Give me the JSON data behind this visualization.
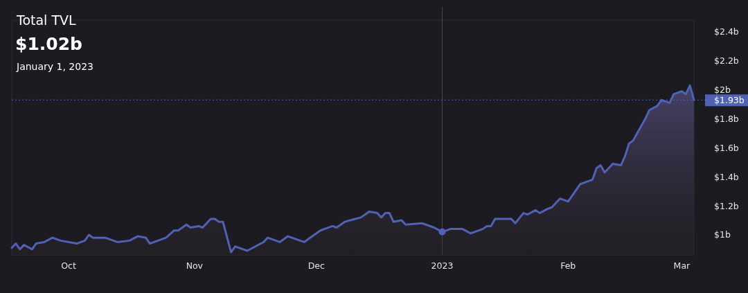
{
  "chart_data": {
    "type": "area",
    "title": "Total TVL",
    "subtitle": "$1.02b",
    "annotations": [
      "January 1, 2023"
    ],
    "xlim": [
      "2022-09-17",
      "2023-03-04"
    ],
    "xticks": [
      {
        "value": "2022-10-01",
        "label": "Oct"
      },
      {
        "value": "2022-11-01",
        "label": "Nov"
      },
      {
        "value": "2022-12-01",
        "label": "Dec"
      },
      {
        "value": "2023-01-01",
        "label": "2023"
      },
      {
        "value": "2023-02-01",
        "label": "Feb"
      },
      {
        "value": "2023-03-01",
        "label": "Mar"
      }
    ],
    "ylim": [
      0.86,
      2.48
    ],
    "yticks": [
      {
        "value": 1,
        "label": "$1b"
      },
      {
        "value": 1.2,
        "label": "$1.2b"
      },
      {
        "value": 1.4,
        "label": "$1.4b"
      },
      {
        "value": 1.6,
        "label": "$1.6b"
      },
      {
        "value": 1.8,
        "label": "$1.8b"
      },
      {
        "value": 2,
        "label": "$2b"
      },
      {
        "value": 2.2,
        "label": "$2.2b"
      },
      {
        "value": 2.4,
        "label": "$2.4b"
      }
    ],
    "ref_lines": [
      {
        "axis": "x",
        "value": "2023-01-01",
        "label": null,
        "color": "#4a4a52",
        "line_style": "solid"
      },
      {
        "axis": "y",
        "value": 1.93,
        "label": "$1.93b",
        "color": "#4f62b4",
        "line_style": "dotted"
      }
    ],
    "series": [
      {
        "color": "#4f62b4",
        "x": [
          "2022-09-17",
          "2022-09-18",
          "2022-09-19",
          "2022-09-20",
          "2022-09-22",
          "2022-09-23",
          "2022-09-25",
          "2022-09-27",
          "2022-09-29",
          "2022-10-03",
          "2022-10-05",
          "2022-10-06",
          "2022-10-07",
          "2022-10-10",
          "2022-10-13",
          "2022-10-16",
          "2022-10-18",
          "2022-10-20",
          "2022-10-21",
          "2022-10-23",
          "2022-10-25",
          "2022-10-27",
          "2022-10-28",
          "2022-10-30",
          "2022-10-31",
          "2022-11-02",
          "2022-11-03",
          "2022-11-05",
          "2022-11-06",
          "2022-11-07",
          "2022-11-08",
          "2022-11-10",
          "2022-11-11",
          "2022-11-12",
          "2022-11-14",
          "2022-11-16",
          "2022-11-18",
          "2022-11-19",
          "2022-11-22",
          "2022-11-24",
          "2022-11-28",
          "2022-11-30",
          "2022-12-02",
          "2022-12-05",
          "2022-12-06",
          "2022-12-08",
          "2022-12-12",
          "2022-12-14",
          "2022-12-16",
          "2022-12-17",
          "2022-12-18",
          "2022-12-19",
          "2022-12-20",
          "2022-12-22",
          "2022-12-23",
          "2022-12-27",
          "2022-12-30",
          "2023-01-01",
          "2023-01-03",
          "2023-01-06",
          "2023-01-08",
          "2023-01-11",
          "2023-01-12",
          "2023-01-13",
          "2023-01-14",
          "2023-01-18",
          "2023-01-19",
          "2023-01-21",
          "2023-01-22",
          "2023-01-24",
          "2023-01-25",
          "2023-01-27",
          "2023-01-28",
          "2023-01-30",
          "2023-02-01",
          "2023-02-03",
          "2023-02-04",
          "2023-02-07",
          "2023-02-08",
          "2023-02-09",
          "2023-02-10",
          "2023-02-12",
          "2023-02-14",
          "2023-02-15",
          "2023-02-16",
          "2023-02-17",
          "2023-02-19",
          "2023-02-20",
          "2023-02-21",
          "2023-02-23",
          "2023-02-24",
          "2023-02-25",
          "2023-02-26",
          "2023-02-27",
          "2023-03-01",
          "2023-03-02",
          "2023-03-03",
          "2023-03-04"
        ],
        "values": [
          0.91,
          0.94,
          0.9,
          0.93,
          0.9,
          0.94,
          0.95,
          0.98,
          0.96,
          0.94,
          0.96,
          1.0,
          0.98,
          0.98,
          0.95,
          0.96,
          0.99,
          0.98,
          0.94,
          0.96,
          0.98,
          1.03,
          1.03,
          1.07,
          1.05,
          1.06,
          1.05,
          1.11,
          1.11,
          1.09,
          1.09,
          0.88,
          0.92,
          0.91,
          0.89,
          0.92,
          0.95,
          0.98,
          0.95,
          0.99,
          0.95,
          0.99,
          1.03,
          1.06,
          1.05,
          1.09,
          1.12,
          1.16,
          1.15,
          1.12,
          1.15,
          1.15,
          1.09,
          1.1,
          1.07,
          1.08,
          1.05,
          1.02,
          1.04,
          1.04,
          1.01,
          1.04,
          1.06,
          1.06,
          1.11,
          1.11,
          1.08,
          1.15,
          1.14,
          1.17,
          1.15,
          1.18,
          1.19,
          1.25,
          1.23,
          1.31,
          1.35,
          1.38,
          1.46,
          1.48,
          1.43,
          1.49,
          1.48,
          1.54,
          1.63,
          1.65,
          1.75,
          1.8,
          1.86,
          1.89,
          1.93,
          1.92,
          1.91,
          1.97,
          1.99,
          1.97,
          2.03,
          1.93
        ]
      },
      {
        "type": "scatter",
        "marker": "circle",
        "color": "#4f62b4",
        "x": [
          "2023-01-01"
        ],
        "values": [
          1.02
        ]
      }
    ]
  }
}
